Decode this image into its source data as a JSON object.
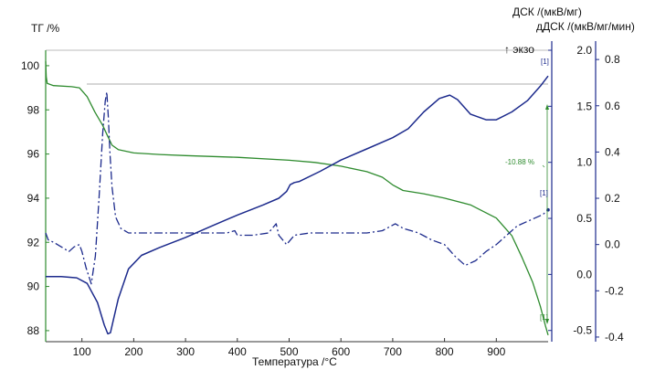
{
  "chart_data": {
    "type": "line",
    "xlabel": "Температура /°C",
    "x_ticks": [
      100,
      200,
      300,
      400,
      500,
      600,
      700,
      800,
      900
    ],
    "xlim": [
      30,
      1000
    ],
    "left_axis": {
      "label": "ТГ /%",
      "ticks": [
        88,
        90,
        92,
        94,
        96,
        98,
        100
      ],
      "range": [
        87.5,
        100.7
      ]
    },
    "right_axis_1": {
      "label": "ДСК /(мкВ/мг)",
      "ticks": [
        -0.5,
        0.0,
        0.5,
        1.0,
        1.5,
        2.0
      ],
      "range": [
        -0.6,
        2.0
      ]
    },
    "right_axis_2": {
      "label": "дДСК /(мкВ/мг/мин)",
      "ticks": [
        -0.4,
        -0.2,
        0.0,
        0.2,
        0.4,
        0.6,
        0.8
      ],
      "range": [
        -0.42,
        0.84
      ]
    },
    "exo_label": "↑ экзо",
    "mass_loss_label": "-10.88 %",
    "curve_marker": "[1]",
    "colors": {
      "tg": "#2e8b2e",
      "dsc": "#1c2a8c",
      "ddsc": "#1c2a8c",
      "axis_left": "#2e8b2e",
      "axis_right": "#1c2a8c",
      "baseline": "#909090"
    },
    "series": [
      {
        "name": "ТГ",
        "axis": "left",
        "points": [
          [
            30,
            100.2
          ],
          [
            31,
            99.5
          ],
          [
            33,
            99.2
          ],
          [
            45,
            99.1
          ],
          [
            80,
            99.05
          ],
          [
            95,
            99.0
          ],
          [
            110,
            98.6
          ],
          [
            125,
            97.9
          ],
          [
            140,
            97.3
          ],
          [
            150,
            96.8
          ],
          [
            158,
            96.4
          ],
          [
            170,
            96.2
          ],
          [
            200,
            96.05
          ],
          [
            250,
            95.98
          ],
          [
            300,
            95.93
          ],
          [
            400,
            95.85
          ],
          [
            500,
            95.72
          ],
          [
            550,
            95.62
          ],
          [
            600,
            95.45
          ],
          [
            650,
            95.2
          ],
          [
            680,
            94.95
          ],
          [
            700,
            94.6
          ],
          [
            720,
            94.35
          ],
          [
            760,
            94.2
          ],
          [
            800,
            94.0
          ],
          [
            850,
            93.7
          ],
          [
            900,
            93.1
          ],
          [
            930,
            92.3
          ],
          [
            950,
            91.3
          ],
          [
            970,
            90.2
          ],
          [
            985,
            89.1
          ],
          [
            995,
            88.2
          ],
          [
            1000,
            87.8
          ]
        ]
      },
      {
        "name": "ДСК",
        "axis": "right_1",
        "points": [
          [
            30,
            -0.02
          ],
          [
            60,
            -0.02
          ],
          [
            90,
            -0.03
          ],
          [
            110,
            -0.08
          ],
          [
            130,
            -0.25
          ],
          [
            143,
            -0.45
          ],
          [
            150,
            -0.53
          ],
          [
            155,
            -0.52
          ],
          [
            160,
            -0.42
          ],
          [
            170,
            -0.22
          ],
          [
            190,
            0.05
          ],
          [
            215,
            0.17
          ],
          [
            250,
            0.24
          ],
          [
            300,
            0.33
          ],
          [
            350,
            0.43
          ],
          [
            400,
            0.53
          ],
          [
            450,
            0.62
          ],
          [
            480,
            0.68
          ],
          [
            495,
            0.74
          ],
          [
            502,
            0.8
          ],
          [
            510,
            0.82
          ],
          [
            520,
            0.83
          ],
          [
            560,
            0.92
          ],
          [
            600,
            1.02
          ],
          [
            650,
            1.12
          ],
          [
            700,
            1.22
          ],
          [
            730,
            1.3
          ],
          [
            760,
            1.45
          ],
          [
            790,
            1.57
          ],
          [
            810,
            1.6
          ],
          [
            825,
            1.56
          ],
          [
            850,
            1.43
          ],
          [
            880,
            1.38
          ],
          [
            900,
            1.38
          ],
          [
            930,
            1.45
          ],
          [
            960,
            1.55
          ],
          [
            985,
            1.68
          ],
          [
            1000,
            1.77
          ]
        ]
      },
      {
        "name": "дДСК",
        "axis": "right_2",
        "points": [
          [
            30,
            0.05
          ],
          [
            35,
            0.02
          ],
          [
            45,
            0.01
          ],
          [
            60,
            -0.01
          ],
          [
            75,
            -0.03
          ],
          [
            85,
            -0.01
          ],
          [
            95,
            0.0
          ],
          [
            100,
            -0.03
          ],
          [
            108,
            -0.1
          ],
          [
            118,
            -0.17
          ],
          [
            126,
            -0.05
          ],
          [
            133,
            0.2
          ],
          [
            140,
            0.48
          ],
          [
            145,
            0.62
          ],
          [
            148,
            0.66
          ],
          [
            151,
            0.55
          ],
          [
            154,
            0.4
          ],
          [
            158,
            0.25
          ],
          [
            165,
            0.12
          ],
          [
            175,
            0.07
          ],
          [
            190,
            0.05
          ],
          [
            220,
            0.05
          ],
          [
            300,
            0.05
          ],
          [
            380,
            0.05
          ],
          [
            395,
            0.06
          ],
          [
            400,
            0.04
          ],
          [
            430,
            0.04
          ],
          [
            460,
            0.05
          ],
          [
            475,
            0.09
          ],
          [
            480,
            0.04
          ],
          [
            495,
            0.0
          ],
          [
            510,
            0.04
          ],
          [
            540,
            0.05
          ],
          [
            600,
            0.05
          ],
          [
            650,
            0.05
          ],
          [
            680,
            0.06
          ],
          [
            705,
            0.09
          ],
          [
            720,
            0.07
          ],
          [
            750,
            0.05
          ],
          [
            775,
            0.02
          ],
          [
            800,
            0.0
          ],
          [
            820,
            -0.05
          ],
          [
            840,
            -0.09
          ],
          [
            860,
            -0.07
          ],
          [
            880,
            -0.03
          ],
          [
            900,
            0.0
          ],
          [
            940,
            0.08
          ],
          [
            970,
            0.11
          ],
          [
            990,
            0.13
          ],
          [
            1000,
            0.15
          ]
        ]
      }
    ]
  }
}
